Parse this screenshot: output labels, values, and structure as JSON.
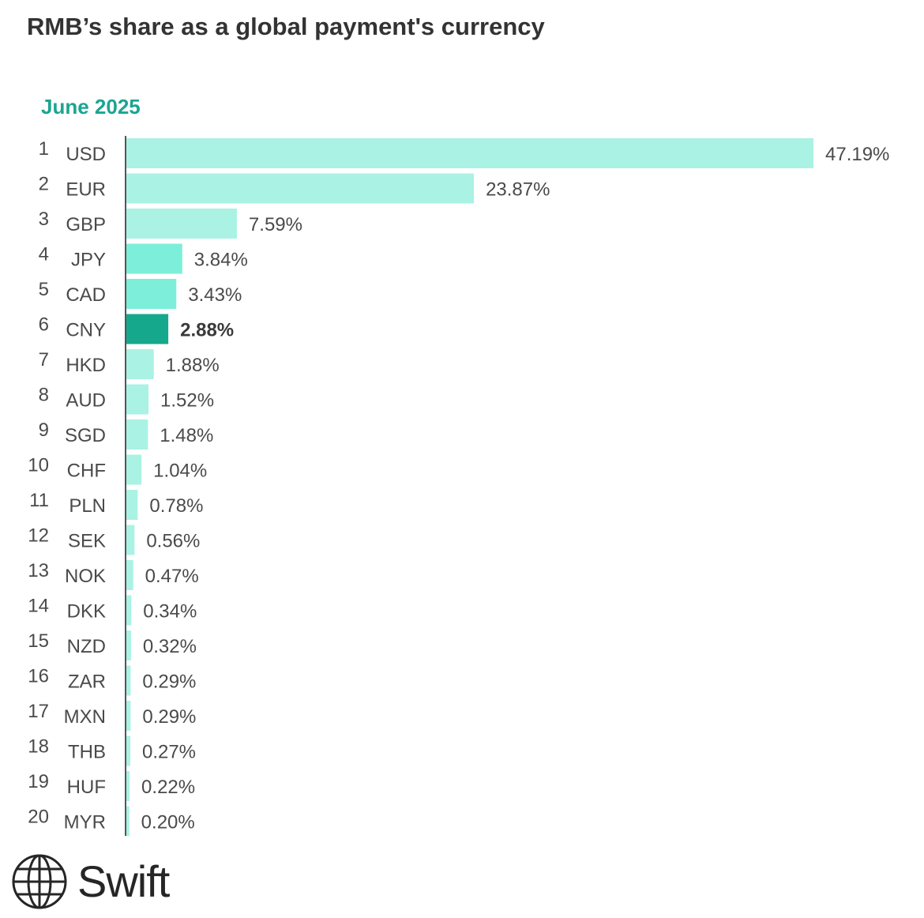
{
  "title": "RMB’s share as a global payment's currency",
  "subtitle": "June 2025",
  "logo": {
    "text": "Swift",
    "icon": "globe-icon"
  },
  "colors": {
    "subtitle": "#1aa591",
    "bar_light": "#a9f2e4",
    "bar_medium": "#7deed9",
    "bar_highlight": "#16a88d",
    "axis": "#555555"
  },
  "chart_data": {
    "type": "bar",
    "orientation": "horizontal",
    "title": "RMB’s share as a global payment's currency",
    "subtitle": "June 2025",
    "xlabel": "",
    "ylabel": "",
    "grid": false,
    "highlight": "CNY",
    "ranks": [
      "1",
      "2",
      "3",
      "4",
      "5",
      "6",
      "7",
      "8",
      "9",
      "10",
      "11",
      "12",
      "13",
      "14",
      "15",
      "16",
      "17",
      "18",
      "19",
      "20"
    ],
    "categories": [
      "USD",
      "EUR",
      "GBP",
      "JPY",
      "CAD",
      "CNY",
      "HKD",
      "AUD",
      "SGD",
      "CHF",
      "PLN",
      "SEK",
      "NOK",
      "DKK",
      "NZD",
      "ZAR",
      "MXN",
      "THB",
      "HUF",
      "MYR"
    ],
    "values": [
      47.19,
      23.87,
      7.59,
      3.84,
      3.43,
      2.88,
      1.88,
      1.52,
      1.48,
      1.04,
      0.78,
      0.56,
      0.47,
      0.34,
      0.32,
      0.29,
      0.29,
      0.27,
      0.22,
      0.2
    ],
    "labels": [
      "47.19%",
      "23.87%",
      "7.59%",
      "3.84%",
      "3.43%",
      "2.88%",
      "1.88%",
      "1.52%",
      "1.48%",
      "1.04%",
      "0.78%",
      "0.56%",
      "0.47%",
      "0.34%",
      "0.32%",
      "0.29%",
      "0.29%",
      "0.27%",
      "0.22%",
      "0.20%"
    ]
  }
}
